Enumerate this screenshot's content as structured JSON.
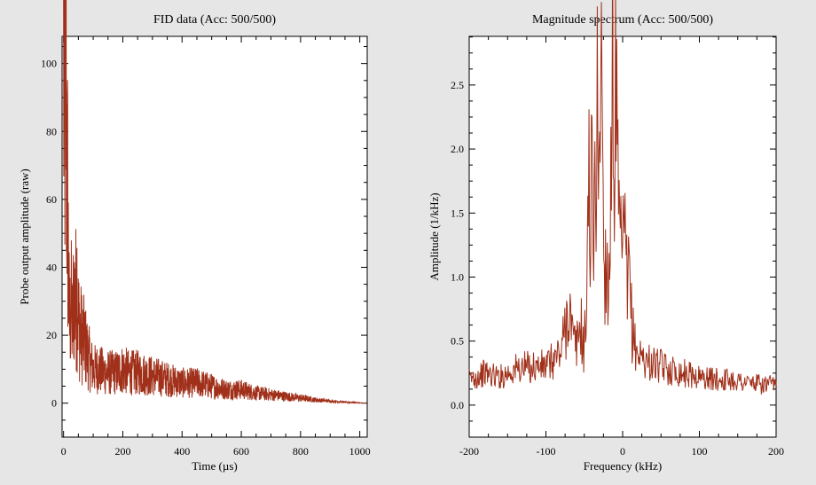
{
  "chart_data": [
    {
      "type": "line",
      "title": "FID data (Acc: 500/500)",
      "xlabel": "Time (µs)",
      "ylabel": "Probe output amplitude (raw)",
      "xlim": [
        -5,
        1025
      ],
      "ylim": [
        -10,
        108
      ],
      "xticks": [
        0,
        200,
        400,
        600,
        800,
        1000
      ],
      "xtick_labels": [
        "0",
        "200",
        "400",
        "600",
        "800",
        "1000"
      ],
      "yticks": [
        0,
        20,
        40,
        60,
        80,
        100
      ],
      "ytick_labels": [
        "0",
        "20",
        "40",
        "60",
        "80",
        "100"
      ],
      "series": [
        {
          "name": "FID",
          "color": "#a0301a",
          "x": [
            0,
            2,
            4,
            6,
            8,
            10,
            12,
            14,
            16,
            18,
            20,
            25,
            30,
            35,
            40,
            45,
            50,
            60,
            70,
            80,
            90,
            100,
            120,
            140,
            160,
            180,
            200,
            220,
            250,
            300,
            350,
            400,
            450,
            500,
            550,
            600,
            650,
            700,
            750,
            800,
            850,
            900,
            950,
            1000,
            1020
          ],
          "y": [
            97,
            90,
            93,
            86,
            91,
            80,
            65,
            58,
            44,
            32,
            22,
            30,
            22,
            34,
            28,
            37,
            24,
            20,
            18,
            15,
            12,
            10,
            10,
            9,
            9,
            9,
            10,
            9,
            9,
            8,
            7,
            6,
            6,
            5,
            4,
            4,
            3,
            2.5,
            2,
            1.5,
            1,
            0.6,
            0.3,
            0.1,
            0
          ]
        }
      ]
    },
    {
      "type": "line",
      "title": "Magnitude spectrum (Acc: 500/500)",
      "xlabel": "Frequency (kHz)",
      "ylabel": "Amplitude (1/kHz)",
      "xlim": [
        -200,
        200
      ],
      "ylim": [
        -0.25,
        2.88
      ],
      "xticks": [
        -200,
        -100,
        0,
        100,
        200
      ],
      "xtick_labels": [
        "-200",
        "-100",
        "0",
        "100",
        "200"
      ],
      "yticks": [
        0.0,
        0.5,
        1.0,
        1.5,
        2.0,
        2.5
      ],
      "ytick_labels": [
        "0.0",
        "0.5",
        "1.0",
        "1.5",
        "2.0",
        "2.5"
      ],
      "series": [
        {
          "name": "Magnitude",
          "color": "#a0301a",
          "x": [
            -200,
            -180,
            -160,
            -140,
            -120,
            -100,
            -90,
            -80,
            -75,
            -70,
            -65,
            -60,
            -55,
            -50,
            -47,
            -45,
            -44,
            -42,
            -40,
            -38,
            -35,
            -32,
            -30,
            -28,
            -26,
            -25,
            -23,
            -21,
            -19,
            -17,
            -15,
            -13,
            -11,
            -10,
            -8,
            -6,
            -4,
            -2,
            0,
            2,
            4,
            6,
            8,
            10,
            12,
            15,
            20,
            30,
            40,
            50,
            60,
            80,
            100,
            120,
            140,
            160,
            180,
            200
          ],
          "y": [
            0.2,
            0.25,
            0.22,
            0.28,
            0.3,
            0.3,
            0.35,
            0.42,
            0.6,
            0.8,
            0.5,
            0.45,
            0.65,
            0.4,
            0.9,
            1.5,
            1.75,
            1.5,
            1.7,
            1.2,
            1.8,
            2.4,
            2.2,
            2.58,
            2.4,
            1.3,
            0.9,
            1.4,
            0.8,
            1.1,
            2.3,
            2.55,
            1.9,
            2.5,
            2.2,
            1.5,
            1.3,
            1.1,
            1.4,
            1.2,
            1.15,
            0.85,
            1.0,
            0.9,
            0.6,
            0.5,
            0.4,
            0.35,
            0.32,
            0.3,
            0.28,
            0.25,
            0.22,
            0.2,
            0.2,
            0.18,
            0.16,
            0.15
          ]
        }
      ]
    }
  ]
}
